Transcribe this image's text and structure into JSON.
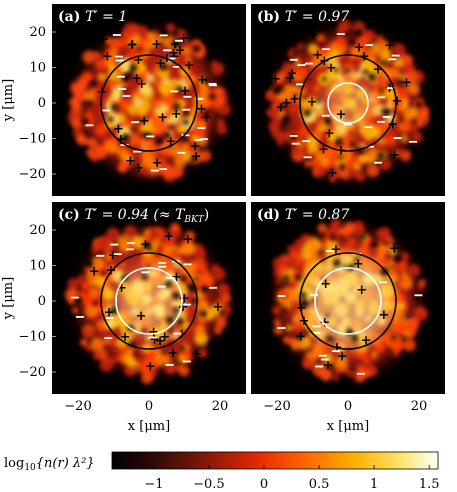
{
  "colors": {
    "background": "#000000",
    "hot": "#ff3a00",
    "mid": "#ffb000",
    "core": "#fff6b0",
    "vortex_sign": "#000000",
    "antivortex_sign": "#ffffff",
    "outer_circle": "#000000",
    "inner_circle": "#ffffff"
  },
  "panels": [
    {
      "id": "a",
      "label_prefix": "(a)",
      "label_text": "T′ = 1",
      "inner_circle": false,
      "core_strength": 0.15,
      "vortex_count": 34,
      "antivortex_count": 30
    },
    {
      "id": "b",
      "label_prefix": "(b)",
      "label_text": "T′ = 0.97",
      "inner_circle": true,
      "core_strength": 0.35,
      "vortex_count": 26,
      "antivortex_count": 24
    },
    {
      "id": "c",
      "label_prefix": "(c)",
      "label_text": "T′ = 0.94  (≈ T",
      "label_sub": "BKT",
      "label_tail": ")",
      "inner_circle": true,
      "core_strength": 0.55,
      "vortex_count": 22,
      "antivortex_count": 22
    },
    {
      "id": "d",
      "label_prefix": "(d)",
      "label_text": "T′ = 0.87",
      "inner_circle": true,
      "core_strength": 0.8,
      "vortex_count": 14,
      "antivortex_count": 14
    }
  ],
  "axes": {
    "x_ticks": [
      "−20",
      "0",
      "20"
    ],
    "y_ticks": [
      "20",
      "10",
      "0",
      "−10",
      "−20"
    ],
    "x_label": "x [μm]",
    "y_label": "y [μm]"
  },
  "colorbar": {
    "label": "log",
    "label_sub": "10",
    "label_tail": "{n(r) λ²}",
    "ticks": [
      "−1",
      "−0.5",
      "0",
      "0.5",
      "1",
      "1.5"
    ]
  }
}
